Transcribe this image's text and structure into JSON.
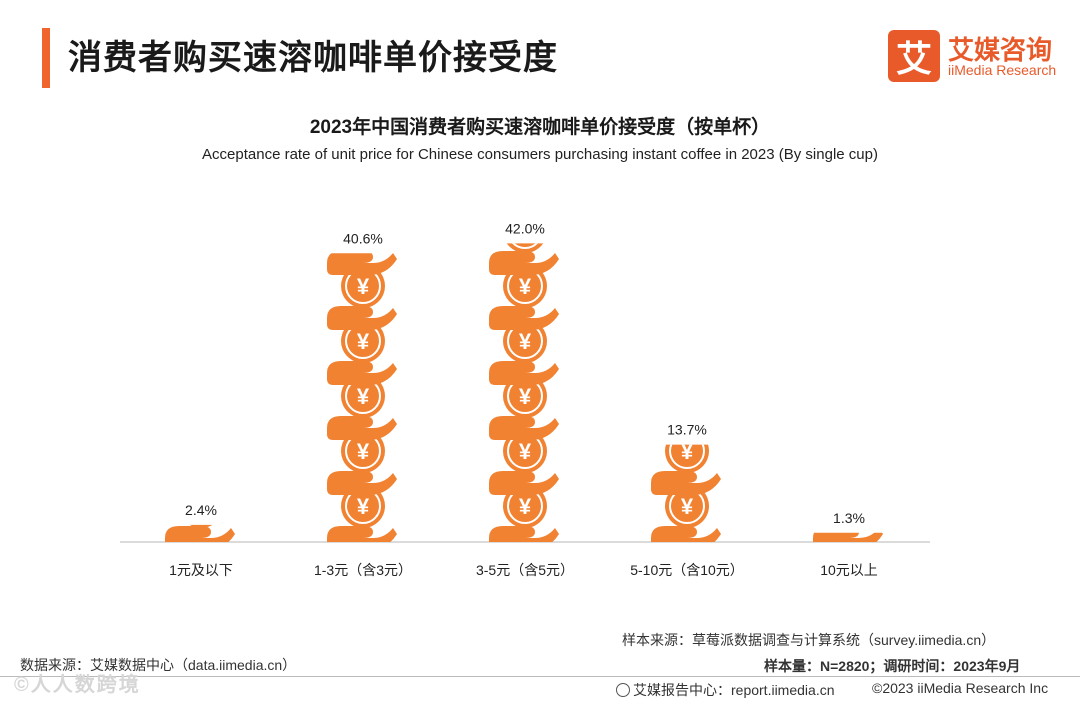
{
  "header": {
    "title": "消费者购买速溶咖啡单价接受度",
    "logo_mark": "艾",
    "logo_cn": "艾媒咨询",
    "logo_en": "iiMedia Research"
  },
  "colors": {
    "accent": "#f0642d",
    "bar": "#f08232",
    "logo": "#e85a2a"
  },
  "chart_data": {
    "type": "bar",
    "title": "2023年中国消费者购买速溶咖啡单价接受度（按单杯）",
    "subtitle": "Acceptance rate of unit price for Chinese consumers purchasing instant coffee in 2023 (By single cup)",
    "categories": [
      "1元及以下",
      "1-3元（含3元）",
      "3-5元（含5元）",
      "5-10元（含10元）",
      "10元以上"
    ],
    "values": [
      2.4,
      40.6,
      42.0,
      13.7,
      1.3
    ],
    "value_labels": [
      "2.4%",
      "40.6%",
      "42.0%",
      "13.7%",
      "1.3%"
    ],
    "unit": "%",
    "ylim": [
      0,
      45
    ],
    "icon": "yuan-coin-hand-icon",
    "grid": false,
    "xlabel": "",
    "ylabel": ""
  },
  "footer": {
    "sample_source": "样本来源：草莓派数据调查与计算系统（survey.iimedia.cn）",
    "data_source": "数据来源：艾媒数据中心（data.iimedia.cn）",
    "sample_size": "样本量：N=2820；调研时间：2023年9月",
    "report_center": "艾媒报告中心：report.iimedia.cn",
    "copyright": "©2023  iiMedia Research  Inc",
    "watermark": "©人人数跨境"
  }
}
